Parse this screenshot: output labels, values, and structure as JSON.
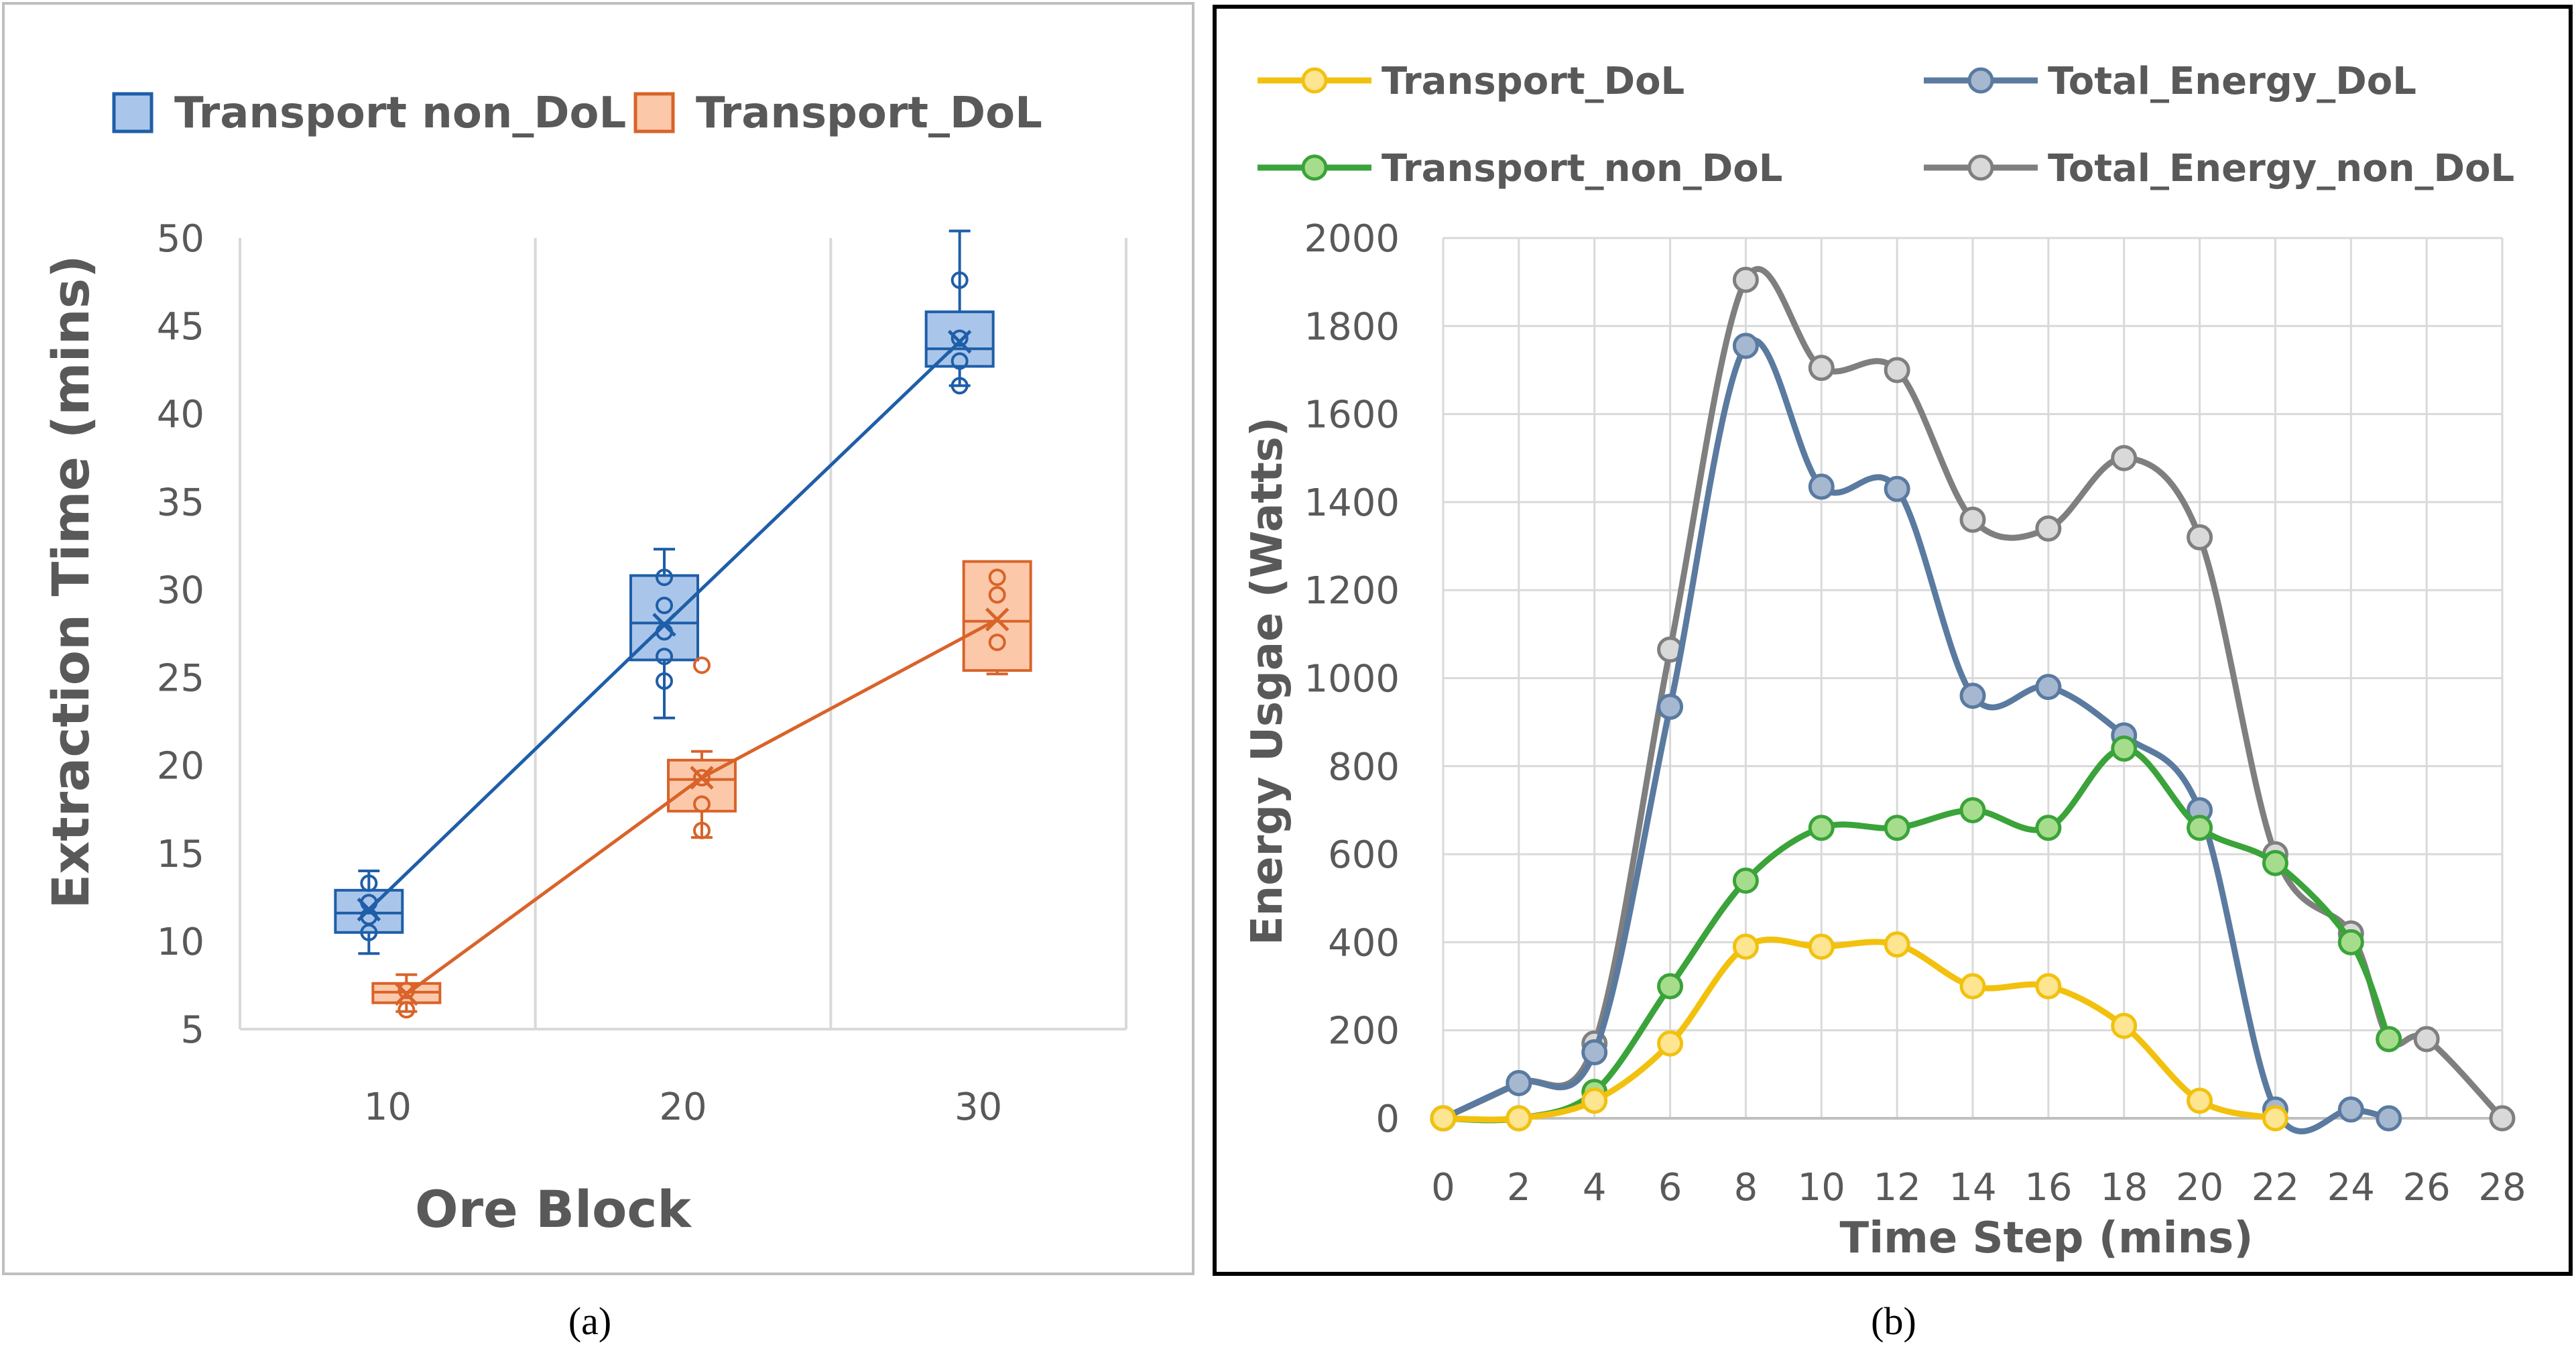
{
  "chart_data": [
    {
      "type": "box",
      "panel_label": "(a)",
      "title": "",
      "xlabel": "Ore Block",
      "ylabel": "Extraction Time (mins)",
      "ylim": [
        5,
        50
      ],
      "yticks": [
        5,
        10,
        15,
        20,
        25,
        30,
        35,
        40,
        45,
        50
      ],
      "categories": [
        "10",
        "20",
        "30"
      ],
      "grid": "vertical",
      "legend_position": "top",
      "series": [
        {
          "name": "Transport non_DoL",
          "color": "#1f5ea8",
          "fill": "#a9c6ea",
          "boxes": [
            {
              "category": "10",
              "min": 9.3,
              "q1": 10.5,
              "median": 11.6,
              "q3": 12.9,
              "max": 14.0,
              "mean": 11.8,
              "points": [
                10.5,
                11.4,
                12.2,
                13.3
              ]
            },
            {
              "category": "20",
              "min": 22.7,
              "q1": 26.0,
              "median": 28.1,
              "q3": 30.8,
              "max": 32.3,
              "mean": 28.0,
              "points": [
                24.8,
                26.2,
                27.6,
                29.1,
                30.7
              ]
            },
            {
              "category": "30",
              "min": 41.6,
              "q1": 42.7,
              "median": 43.7,
              "q3": 45.8,
              "max": 50.4,
              "mean": 44.1,
              "points": [
                41.6,
                43.0,
                44.3,
                47.6
              ]
            }
          ],
          "trendline": [
            11.8,
            28.0,
            44.1
          ]
        },
        {
          "name": "Transport_DoL",
          "color": "#d9632a",
          "fill": "#fbc9a9",
          "boxes": [
            {
              "category": "10",
              "min": 6.0,
              "q1": 6.5,
              "median": 7.1,
              "q3": 7.6,
              "max": 8.1,
              "mean": 7.0,
              "points": [
                6.1,
                7.2
              ]
            },
            {
              "category": "20",
              "min": 15.9,
              "q1": 17.4,
              "median": 19.2,
              "q3": 20.3,
              "max": 20.8,
              "mean": 19.3,
              "points": [
                16.3,
                17.8,
                19.3,
                25.7
              ]
            },
            {
              "category": "30",
              "min": 25.2,
              "q1": 25.4,
              "median": 28.2,
              "q3": 31.6,
              "max": 31.6,
              "mean": 28.3,
              "points": [
                27.0,
                29.7,
                30.7
              ]
            }
          ],
          "trendline": [
            7.0,
            19.3,
            28.3
          ]
        }
      ]
    },
    {
      "type": "line",
      "panel_label": "(b)",
      "title": "",
      "xlabel": "Time Step (mins)",
      "ylabel": "Energy Usgae (Watts)",
      "xlim": [
        0,
        28
      ],
      "ylim": [
        0,
        2000
      ],
      "xticks": [
        0,
        2,
        4,
        6,
        8,
        10,
        12,
        14,
        16,
        18,
        20,
        22,
        24,
        26,
        28
      ],
      "yticks": [
        0,
        200,
        400,
        600,
        800,
        1000,
        1200,
        1400,
        1600,
        1800,
        2000
      ],
      "grid": true,
      "legend_position": "top",
      "smooth": true,
      "series": [
        {
          "name": "Total_Energy_non_DoL",
          "color": "#7f7f7f",
          "fill": "#d9d9d9",
          "x": [
            0,
            2,
            4,
            6,
            8,
            10,
            12,
            14,
            16,
            18,
            20,
            22,
            24,
            25,
            26,
            28
          ],
          "y": [
            0,
            80,
            170,
            1065,
            1905,
            1705,
            1700,
            1360,
            1340,
            1500,
            1320,
            600,
            420,
            180,
            180,
            0
          ]
        },
        {
          "name": "Total_Energy_DoL",
          "color": "#5a7aa0",
          "fill": "#a5b8d0",
          "x": [
            0,
            2,
            4,
            6,
            8,
            10,
            12,
            14,
            16,
            18,
            20,
            22,
            24,
            25
          ],
          "y": [
            0,
            80,
            150,
            935,
            1755,
            1435,
            1430,
            960,
            980,
            870,
            700,
            20,
            20,
            0
          ]
        },
        {
          "name": "Transport_non_DoL",
          "color": "#3aa33a",
          "fill": "#a6dd8c",
          "x": [
            0,
            2,
            4,
            6,
            8,
            10,
            12,
            14,
            16,
            18,
            20,
            22,
            24,
            25
          ],
          "y": [
            0,
            0,
            60,
            300,
            540,
            660,
            660,
            700,
            660,
            840,
            660,
            580,
            400,
            180
          ]
        },
        {
          "name": "Transport_DoL",
          "color": "#f2c10e",
          "fill": "#fde591",
          "x": [
            0,
            2,
            4,
            6,
            8,
            10,
            12,
            14,
            16,
            18,
            20,
            22
          ],
          "y": [
            0,
            0,
            40,
            170,
            390,
            390,
            395,
            300,
            300,
            210,
            40,
            0
          ]
        }
      ],
      "legend_order": [
        "Transport_DoL",
        "Total_Energy_DoL",
        "Transport_non_DoL",
        "Total_Energy_non_DoL"
      ]
    }
  ]
}
